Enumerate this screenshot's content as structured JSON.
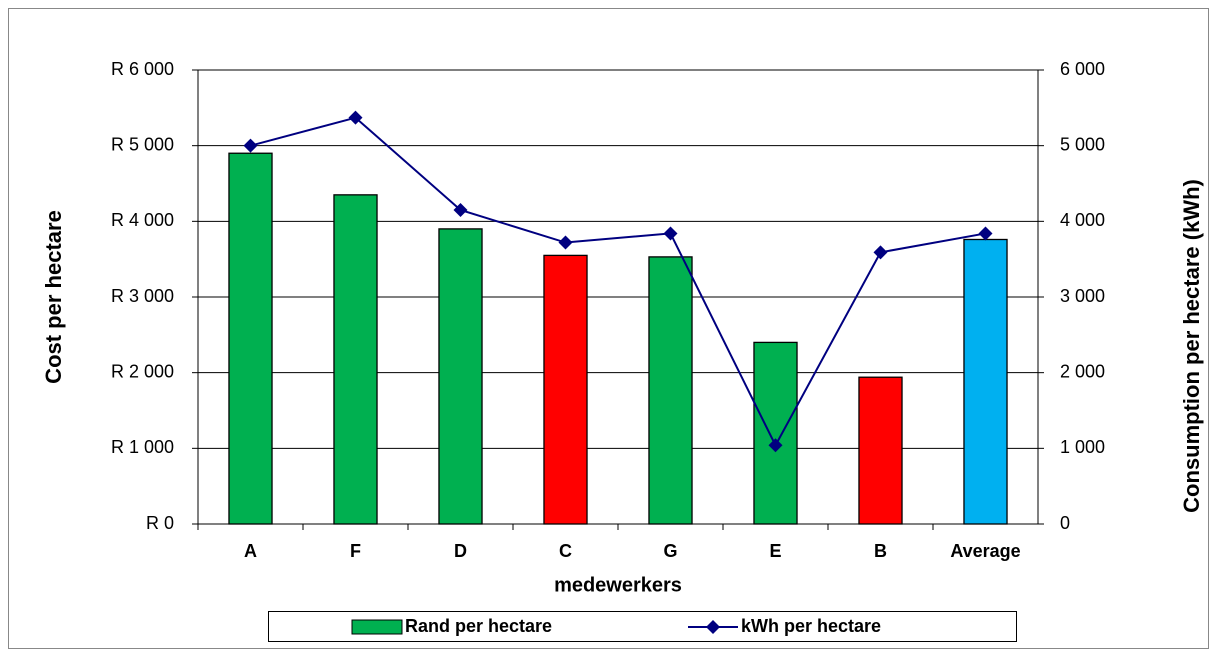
{
  "chart_data": {
    "type": "bar-line",
    "x_label": "medewerkers",
    "y_label": "Cost per hectare",
    "y2_label": "Consumption per hectare (kWh)",
    "categories": [
      "A",
      "F",
      "D",
      "C",
      "G",
      "E",
      "B",
      "Average"
    ],
    "series": [
      {
        "name": "Rand per hectare",
        "type": "bar",
        "color": "#00b050",
        "colors": [
          "#00b050",
          "#00b050",
          "#00b050",
          "#ff0000",
          "#00b050",
          "#00b050",
          "#ff0000",
          "#00b0f0"
        ],
        "values": [
          4900,
          4350,
          3900,
          3550,
          3530,
          2400,
          1940,
          3760
        ]
      },
      {
        "name": "kWh per hectare",
        "type": "line",
        "axis": "y2",
        "color": "#000080",
        "values": [
          5000,
          5370,
          4150,
          3720,
          3840,
          1040,
          3590,
          3840
        ]
      }
    ],
    "ylim": [
      0,
      6000
    ],
    "yticks": [
      {
        "value": 0,
        "label": "R 0"
      },
      {
        "value": 1000,
        "label": "R 1 000"
      },
      {
        "value": 2000,
        "label": "R 2 000"
      },
      {
        "value": 3000,
        "label": "R 3 000"
      },
      {
        "value": 4000,
        "label": "R 4 000"
      },
      {
        "value": 5000,
        "label": "R 5 000"
      },
      {
        "value": 6000,
        "label": "R 6 000"
      }
    ],
    "y2lim": [
      0,
      6000
    ],
    "y2ticks": [
      0,
      {
        "value": 1000,
        "label": "1 000"
      },
      {
        "value": 2000,
        "label": "2 000"
      },
      {
        "value": 3000,
        "label": "3 000"
      },
      {
        "value": 4000,
        "label": "4 000"
      },
      {
        "value": 5000,
        "label": "5 000"
      },
      {
        "value": 6000,
        "label": "6 000"
      }
    ],
    "grid": true,
    "legend": "bottom"
  }
}
